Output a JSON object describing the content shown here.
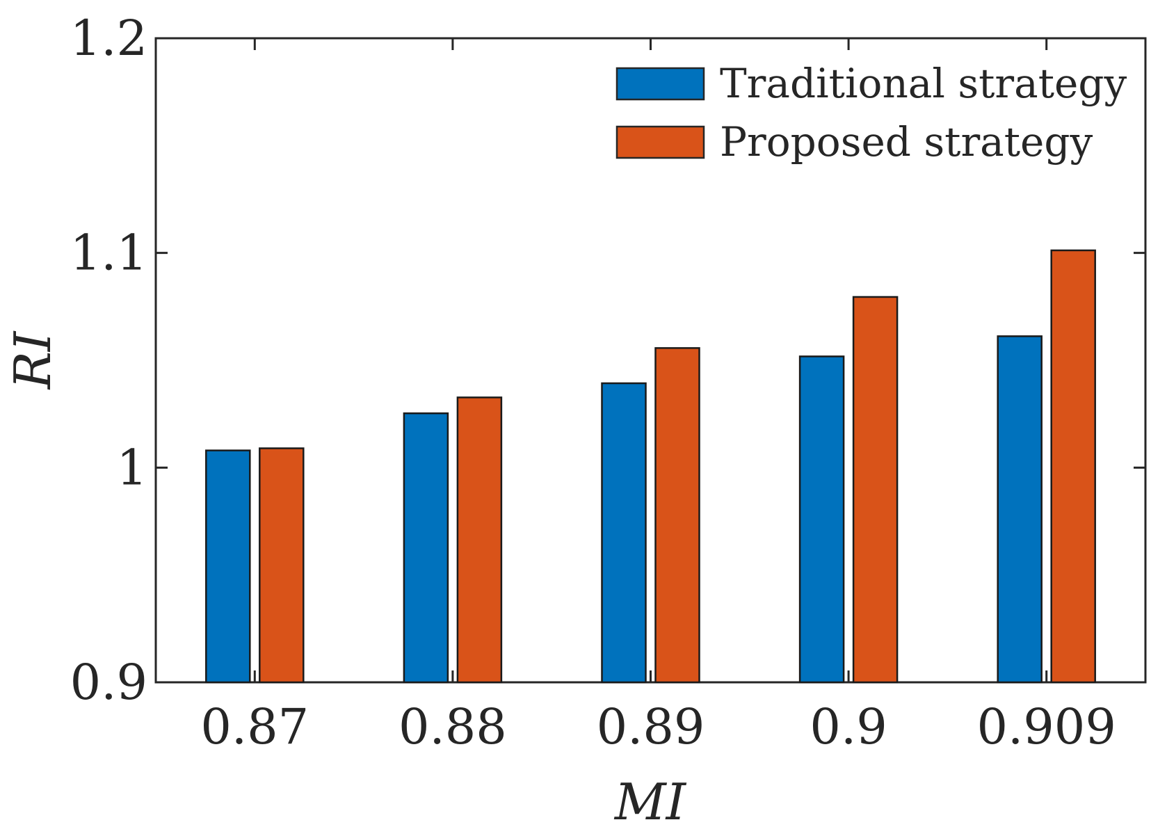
{
  "chart_data": {
    "type": "bar",
    "title": "",
    "xlabel": "MI",
    "ylabel": "RI",
    "categories": [
      "0.87",
      "0.88",
      "0.89",
      "0.9",
      "0.909"
    ],
    "series": [
      {
        "name": "Traditional strategy",
        "color": "#0072BD",
        "values": [
          1.008,
          1.0253,
          1.0393,
          1.0518,
          1.0612
        ]
      },
      {
        "name": "Proposed strategy",
        "color": "#D95319",
        "values": [
          1.009,
          1.0327,
          1.0557,
          1.0795,
          1.1012
        ]
      }
    ],
    "ylim": [
      0.9,
      1.2
    ],
    "yticks": [
      "0.9",
      "1",
      "1.1",
      "1.2"
    ],
    "grid": false,
    "legend_position": "top-right"
  }
}
